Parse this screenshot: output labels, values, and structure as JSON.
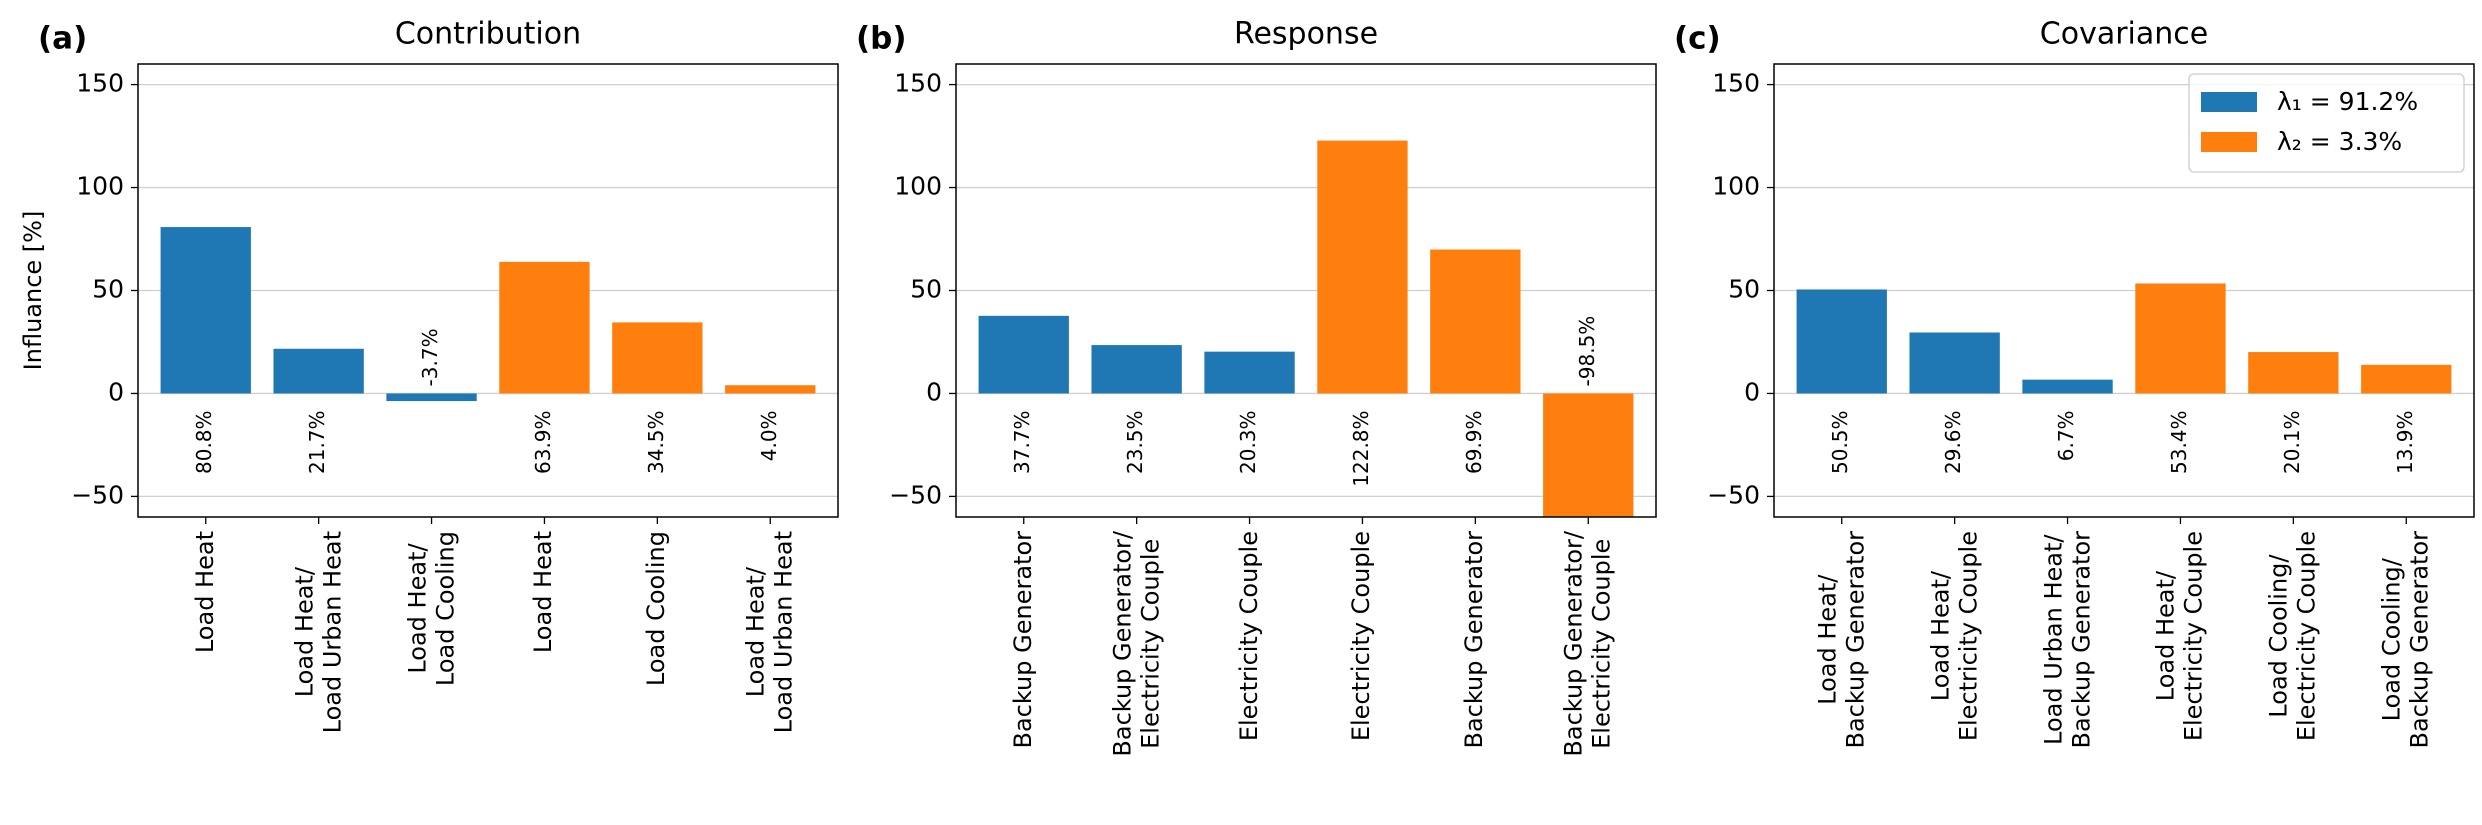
{
  "chart_data": [
    {
      "type": "bar",
      "panel_label": "(a)",
      "title": "Contribution",
      "ylabel": "Influance [%]",
      "categories": [
        "Load Heat",
        "Load Heat/\nLoad Urban Heat",
        "Load Heat/\nLoad Cooling",
        "Load Heat",
        "Load Cooling",
        "Load Heat/\nLoad Urban Heat"
      ],
      "series": [
        {
          "color": "#1f77b4",
          "values": [
            80.8,
            21.7,
            -3.7,
            null,
            null,
            null
          ],
          "value_labels": [
            "80.8%",
            "21.7%",
            "-3.7%",
            null,
            null,
            null
          ]
        },
        {
          "color": "#ff7f0e",
          "values": [
            null,
            null,
            null,
            63.9,
            34.5,
            4.0
          ],
          "value_labels": [
            null,
            null,
            null,
            "63.9%",
            "34.5%",
            "4.0%"
          ]
        }
      ],
      "ylim": [
        -60,
        160
      ],
      "yticks": [
        {
          "value": -50,
          "label": "−50"
        },
        0,
        50,
        100,
        150
      ],
      "grid": true
    },
    {
      "type": "bar",
      "panel_label": "(b)",
      "title": "Response",
      "categories": [
        "Backup Generator",
        "Backup Generator/\nElectricity Couple",
        "Electricity Couple",
        "Electricity Couple",
        "Backup Generator",
        "Backup Generator/\nElectricity Couple"
      ],
      "series": [
        {
          "color": "#1f77b4",
          "values": [
            37.7,
            23.5,
            20.3,
            null,
            null,
            null
          ],
          "value_labels": [
            "37.7%",
            "23.5%",
            "20.3%",
            null,
            null,
            null
          ]
        },
        {
          "color": "#ff7f0e",
          "values": [
            null,
            null,
            null,
            122.8,
            69.9,
            -98.5
          ],
          "value_labels": [
            null,
            null,
            null,
            "122.8%",
            "69.9%",
            "-98.5%"
          ]
        }
      ],
      "ylim": [
        -60,
        160
      ],
      "yticks": [
        {
          "value": -50,
          "label": "−50"
        },
        0,
        50,
        100,
        150
      ],
      "grid": true
    },
    {
      "type": "bar",
      "panel_label": "(c)",
      "title": "Covariance",
      "legend": "upper right",
      "categories": [
        "Load Heat/\nBackup Generator",
        "Load Heat/\nElectricity Couple",
        "Load Urban Heat/\nBackup Generator",
        "Load Heat/\nElectricity Couple",
        "Load Cooling/\nElectricity Couple",
        "Load Cooling/\nBackup Generator"
      ],
      "series": [
        {
          "name": "λ₁ = 91.2%",
          "color": "#1f77b4",
          "values": [
            50.5,
            29.6,
            6.7,
            null,
            null,
            null
          ],
          "value_labels": [
            "50.5%",
            "29.6%",
            "6.7%",
            null,
            null,
            null
          ]
        },
        {
          "name": "λ₂ = 3.3%",
          "color": "#ff7f0e",
          "values": [
            null,
            null,
            null,
            53.4,
            20.1,
            13.9
          ],
          "value_labels": [
            null,
            null,
            null,
            "53.4%",
            "20.1%",
            "13.9%"
          ]
        }
      ],
      "ylim": [
        -60,
        160
      ],
      "yticks": [
        {
          "value": -50,
          "label": "−50"
        },
        0,
        50,
        100,
        150
      ],
      "grid": true
    }
  ]
}
